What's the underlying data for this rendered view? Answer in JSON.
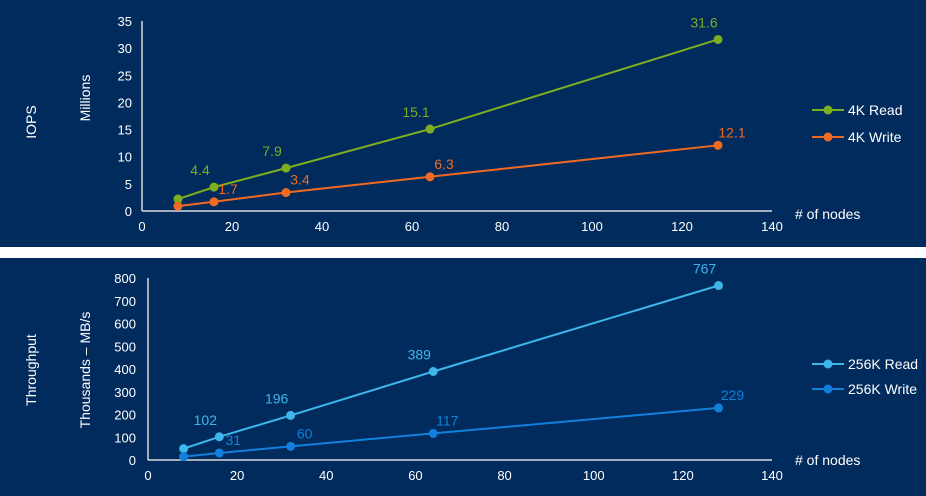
{
  "chart_data": [
    {
      "type": "line",
      "title": "",
      "panel_label": "IOPS",
      "ylabel": "Millions",
      "xlabel": "# of nodes",
      "xlim": [
        0,
        140
      ],
      "ylim": [
        0,
        35
      ],
      "xticks": [
        0,
        20,
        40,
        60,
        80,
        100,
        120,
        140
      ],
      "yticks": [
        0,
        5,
        10,
        15,
        20,
        25,
        30,
        35
      ],
      "grid": false,
      "legend": "right",
      "x": [
        8,
        16,
        32,
        64,
        128
      ],
      "series": [
        {
          "name": "4K Read",
          "color": "#7DAE1F",
          "values": [
            2.2,
            4.4,
            7.9,
            15.1,
            31.6
          ],
          "labels": [
            "",
            "4.4",
            "7.9",
            "15.1",
            "31.6"
          ]
        },
        {
          "name": "4K Write",
          "color": "#F26A21",
          "values": [
            0.9,
            1.7,
            3.4,
            6.3,
            12.1
          ],
          "labels": [
            "",
            "1.7",
            "3.4",
            "6.3",
            "12.1"
          ]
        }
      ]
    },
    {
      "type": "line",
      "title": "",
      "panel_label": "Throughput",
      "ylabel": "Thousands – MB/s",
      "xlabel": "# of nodes",
      "xlim": [
        0,
        140
      ],
      "ylim": [
        0,
        800
      ],
      "xticks": [
        0,
        20,
        40,
        60,
        80,
        100,
        120,
        140
      ],
      "yticks": [
        0,
        100,
        200,
        300,
        400,
        500,
        600,
        700,
        800
      ],
      "grid": false,
      "legend": "right",
      "x": [
        8,
        16,
        32,
        64,
        128
      ],
      "series": [
        {
          "name": "256K Read",
          "color": "#3FB6EA",
          "values": [
            50,
            102,
            196,
            389,
            767
          ],
          "labels": [
            "",
            "102",
            "196",
            "389",
            "767"
          ]
        },
        {
          "name": "256K Write",
          "color": "#1180DA",
          "values": [
            15,
            31,
            60,
            117,
            229
          ],
          "labels": [
            "",
            "31",
            "60",
            "117",
            "229"
          ]
        }
      ]
    }
  ],
  "colors": {
    "background": "#002B5C",
    "axis": "#D9D9D9",
    "text": "#FFFFFF"
  }
}
